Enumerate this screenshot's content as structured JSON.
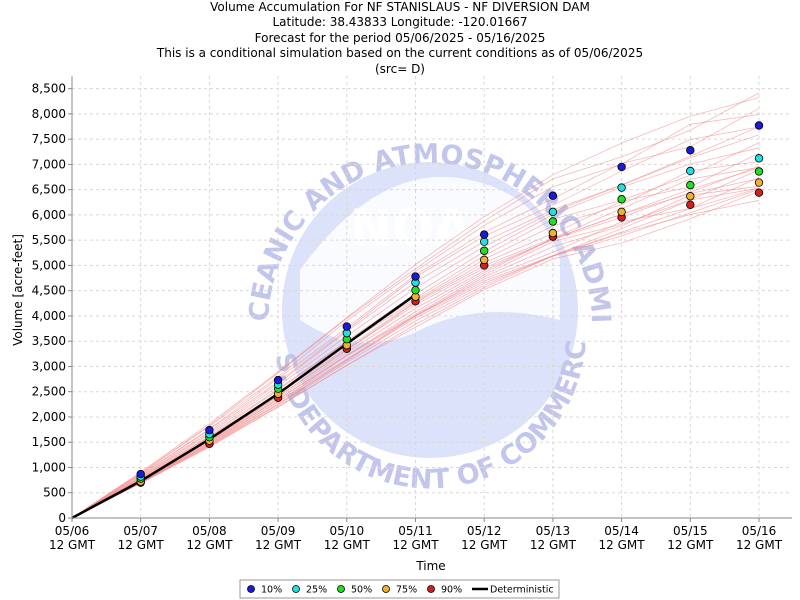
{
  "chart_data": {
    "type": "line",
    "title_lines": [
      "Volume Accumulation For NF STANISLAUS - NF DIVERSION DAM",
      "Latitude: 38.43833 Longitude: -120.01667",
      "Forecast for the period 05/06/2025 - 05/16/2025",
      "This is a conditional simulation based on the current conditions as of 05/06/2025",
      "(src= D)"
    ],
    "xlabel": "Time",
    "ylabel": "Volume [acre-feet]",
    "ylim": [
      0,
      8750
    ],
    "yticks": [
      0,
      500,
      1000,
      1500,
      2000,
      2500,
      3000,
      3500,
      4000,
      4500,
      5000,
      5500,
      6000,
      6500,
      7000,
      7500,
      8000,
      8500
    ],
    "ytick_labels": [
      "0",
      "500",
      "1,000",
      "1,500",
      "2,000",
      "2,500",
      "3,000",
      "3,500",
      "4,000",
      "4,500",
      "5,000",
      "5,500",
      "6,000",
      "6,500",
      "7,000",
      "7,500",
      "8,000",
      "8,500"
    ],
    "x_ticks": [
      {
        "date": "05/06",
        "hour": "12 GMT"
      },
      {
        "date": "05/07",
        "hour": "12 GMT"
      },
      {
        "date": "05/08",
        "hour": "12 GMT"
      },
      {
        "date": "05/09",
        "hour": "12 GMT"
      },
      {
        "date": "05/10",
        "hour": "12 GMT"
      },
      {
        "date": "05/11",
        "hour": "12 GMT"
      },
      {
        "date": "05/12",
        "hour": "12 GMT"
      },
      {
        "date": "05/13",
        "hour": "12 GMT"
      },
      {
        "date": "05/14",
        "hour": "12 GMT"
      },
      {
        "date": "05/15",
        "hour": "12 GMT"
      },
      {
        "date": "05/16",
        "hour": "12 GMT"
      }
    ],
    "grid": true,
    "legend_position": "bottom-center",
    "series": [
      {
        "name": "10%",
        "color": "#1a1adb",
        "x": [
          "05/07",
          "05/08",
          "05/09",
          "05/10",
          "05/11",
          "05/12",
          "05/13",
          "05/14",
          "05/15",
          "05/16"
        ],
        "values": [
          870,
          1740,
          2730,
          3790,
          4780,
          5610,
          6380,
          6950,
          7280,
          7770
        ]
      },
      {
        "name": "25%",
        "color": "#20e0e0",
        "x": [
          "05/07",
          "05/08",
          "05/09",
          "05/10",
          "05/11",
          "05/12",
          "05/13",
          "05/14",
          "05/15",
          "05/16"
        ],
        "values": [
          820,
          1660,
          2640,
          3660,
          4660,
          5470,
          6060,
          6540,
          6870,
          7120
        ]
      },
      {
        "name": "50%",
        "color": "#20e020",
        "x": [
          "05/07",
          "05/08",
          "05/09",
          "05/10",
          "05/11",
          "05/12",
          "05/13",
          "05/14",
          "05/15",
          "05/16"
        ],
        "values": [
          780,
          1600,
          2560,
          3540,
          4510,
          5290,
          5870,
          6310,
          6590,
          6860
        ]
      },
      {
        "name": "75%",
        "color": "#f0b030",
        "x": [
          "05/07",
          "05/08",
          "05/09",
          "05/10",
          "05/11",
          "05/12",
          "05/13",
          "05/14",
          "05/15",
          "05/16"
        ],
        "values": [
          720,
          1530,
          2460,
          3420,
          4380,
          5110,
          5640,
          6060,
          6370,
          6640
        ]
      },
      {
        "name": "90%",
        "color": "#d02020",
        "x": [
          "05/07",
          "05/08",
          "05/09",
          "05/10",
          "05/11",
          "05/12",
          "05/13",
          "05/14",
          "05/15",
          "05/16"
        ],
        "values": [
          700,
          1470,
          2380,
          3350,
          4290,
          5000,
          5570,
          5950,
          6200,
          6440
        ]
      },
      {
        "name": "Deterministic",
        "color": "#000000",
        "x": [
          "05/06",
          "05/07",
          "05/08",
          "05/09",
          "05/10",
          "05/11"
        ],
        "values": [
          0,
          730,
          1560,
          2460,
          3450,
          4420
        ]
      }
    ],
    "ensemble_color": "#f08080",
    "ensemble_final_values": [
      8400,
      8280,
      8150,
      7960,
      7850,
      7700,
      7560,
      7420,
      7300,
      7200,
      7100,
      7020,
      6950,
      6880,
      6820,
      6760,
      6700,
      6640,
      6580,
      6520,
      6460,
      6400,
      6340
    ]
  },
  "watermark": {
    "logo_text": "NOAA",
    "upper_arc": "NATIONAL OCEANIC AND ATMOSPHERIC ADMINISTRATION",
    "lower_arc": "U.S. DEPARTMENT OF COMMERCE"
  }
}
